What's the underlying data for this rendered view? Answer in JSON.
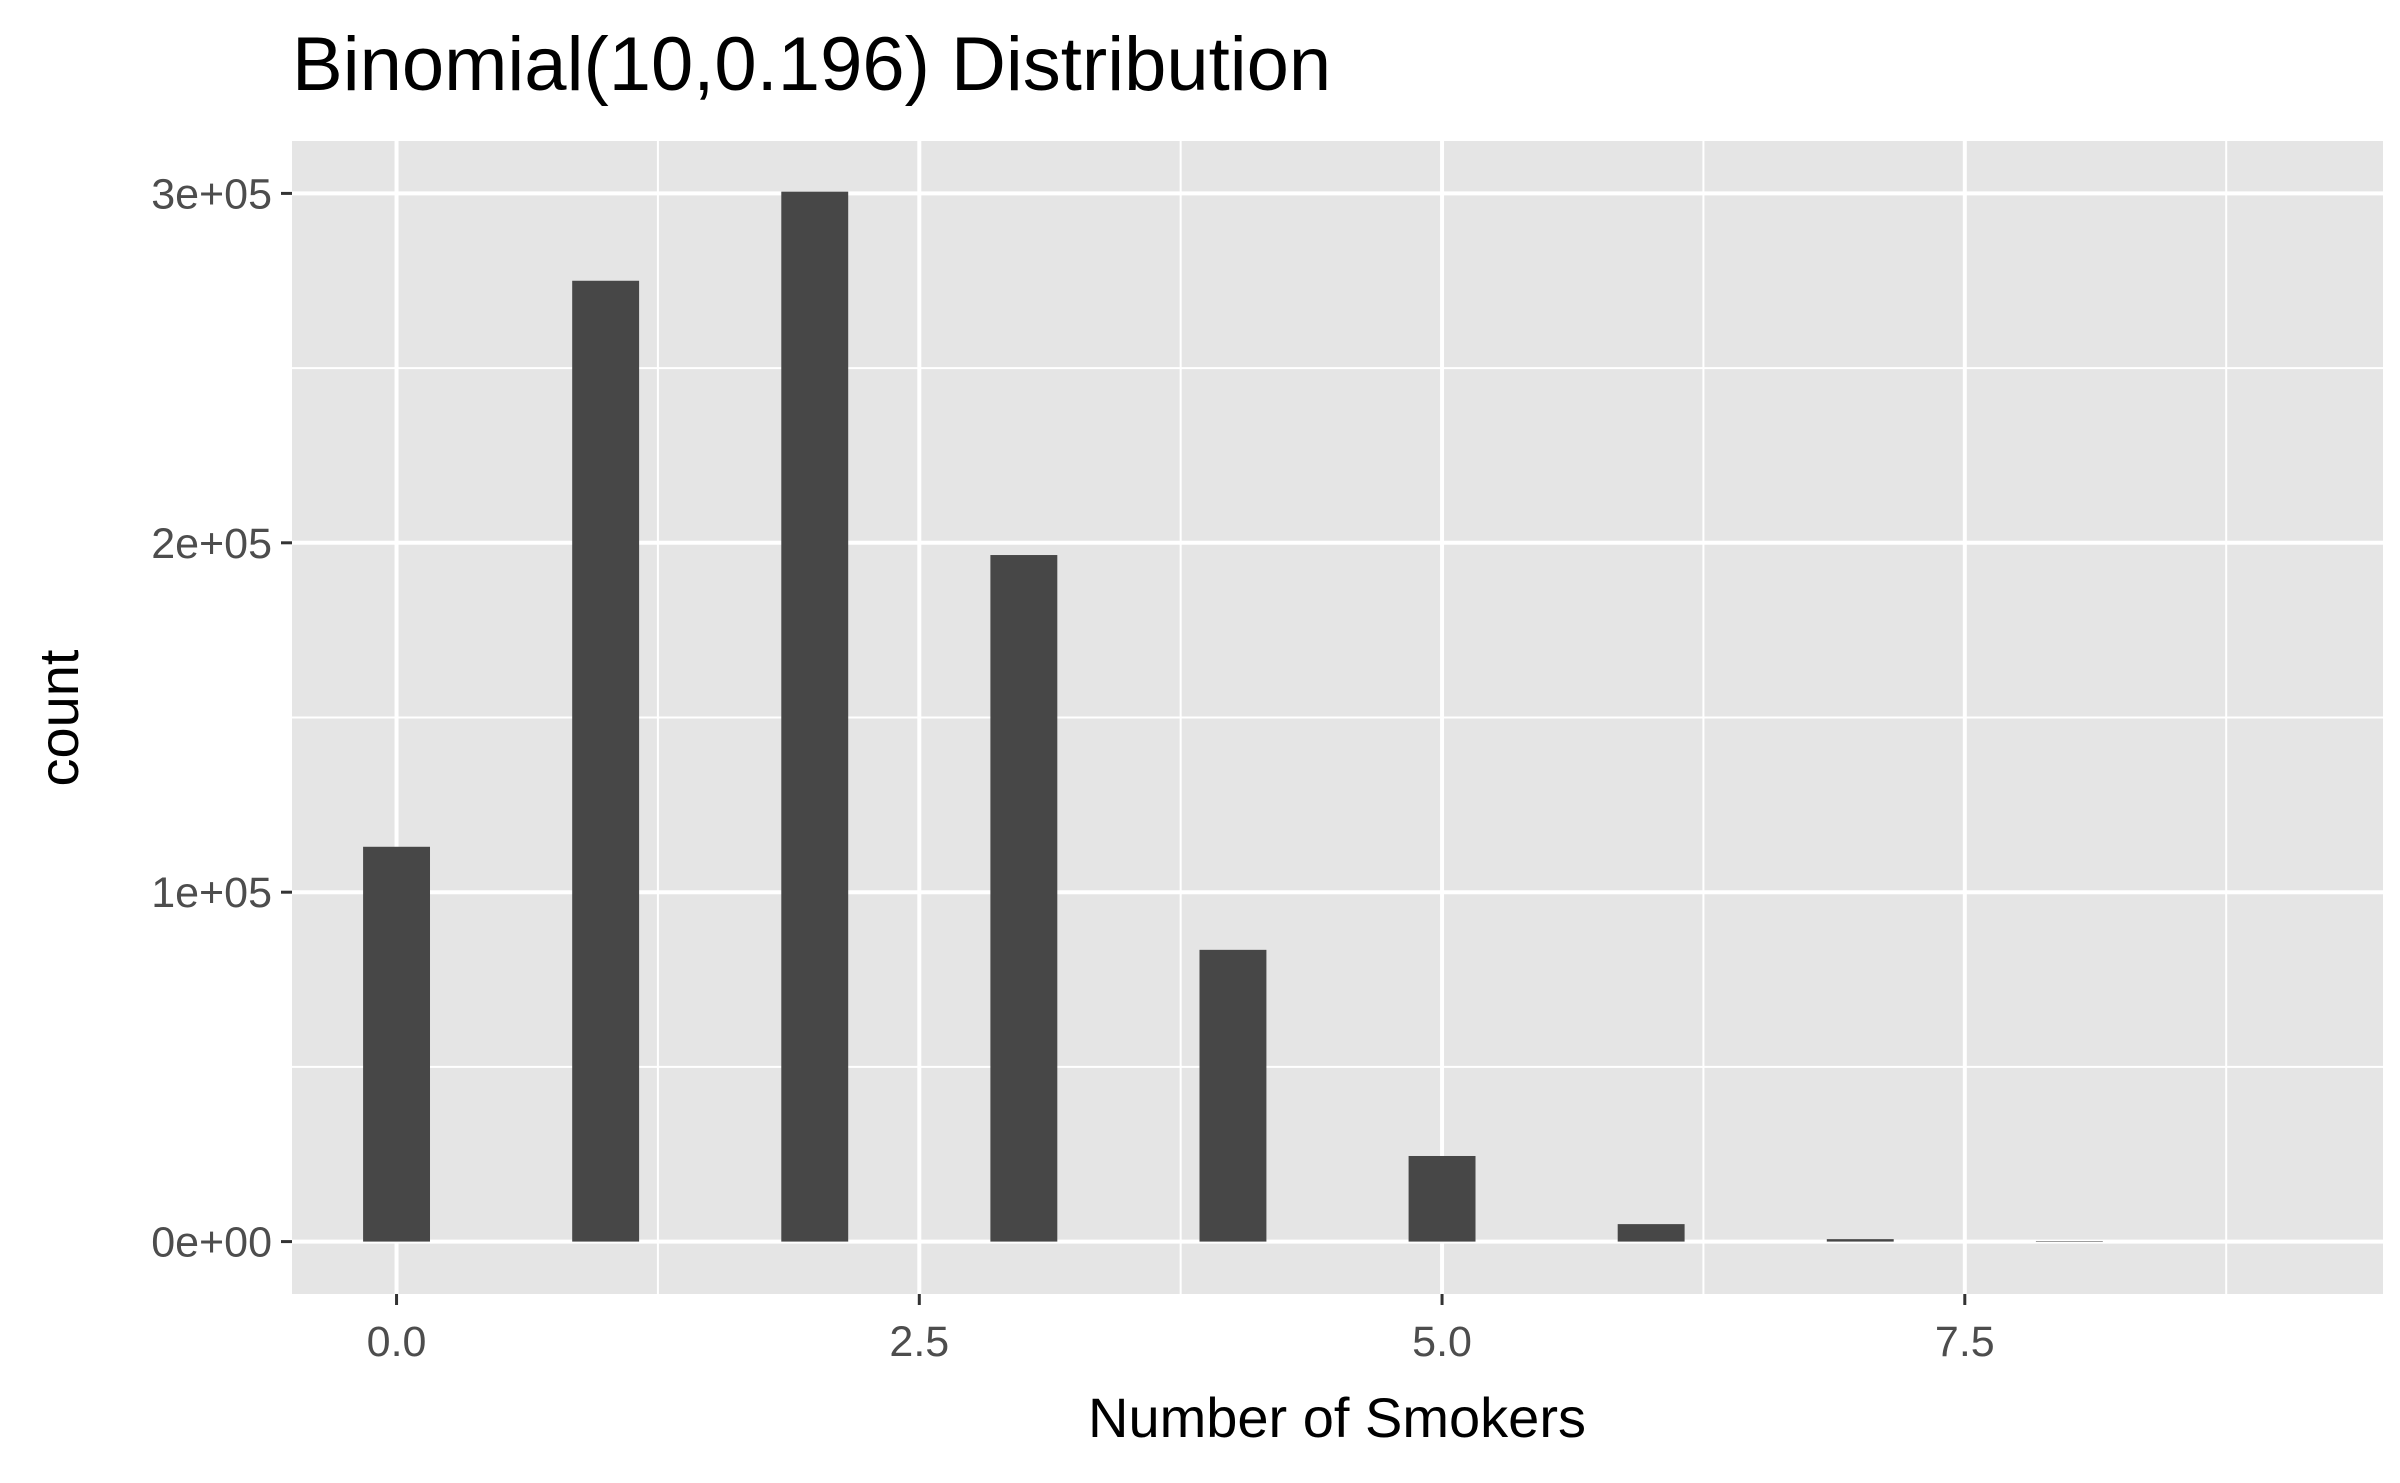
{
  "chart_data": {
    "type": "bar",
    "title": "Binomial(10,0.196) Distribution",
    "xlabel": "Number of Smokers",
    "ylabel": "count",
    "x": [
      0,
      1,
      2,
      3,
      4,
      5,
      6,
      7,
      8
    ],
    "values": [
      113000,
      275000,
      300500,
      196500,
      83500,
      24500,
      5000,
      700,
      150
    ],
    "xlim": [
      -0.5,
      9.5
    ],
    "ylim": [
      -15000,
      315000
    ],
    "x_ticks": [
      0,
      2.5,
      5,
      7.5
    ],
    "x_tick_labels": [
      "0.0",
      "2.5",
      "5.0",
      "7.5"
    ],
    "y_ticks": [
      0,
      100000,
      200000,
      300000
    ],
    "y_tick_labels": [
      "0e+00",
      "1e+05",
      "2e+05",
      "3e+05"
    ],
    "grid": true,
    "colors": {
      "bar": "#474747",
      "panel": "#e5e5e5",
      "grid": "#ffffff",
      "tick": "#333333"
    }
  }
}
